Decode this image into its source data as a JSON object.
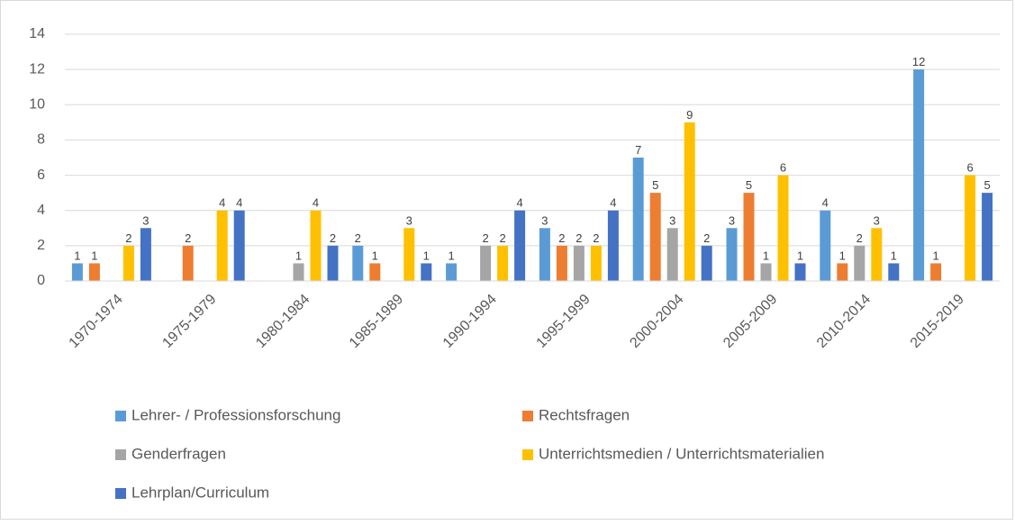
{
  "chart_data": {
    "type": "bar",
    "categories": [
      "1970-1974",
      "1975-1979",
      "1980-1984",
      "1985-1989",
      "1990-1994",
      "1995-1999",
      "2000-2004",
      "2005-2009",
      "2010-2014",
      "2015-2019"
    ],
    "series": [
      {
        "name": "Lehrer- / Professionsforschung",
        "color": "#5b9bd5",
        "values": [
          1,
          0,
          0,
          2,
          1,
          3,
          7,
          3,
          4,
          12
        ]
      },
      {
        "name": "Rechtsfragen",
        "color": "#ed7d31",
        "values": [
          1,
          2,
          0,
          1,
          0,
          2,
          5,
          5,
          1,
          1
        ]
      },
      {
        "name": "Genderfragen",
        "color": "#a5a5a5",
        "values": [
          0,
          0,
          1,
          0,
          2,
          2,
          3,
          1,
          2,
          0
        ]
      },
      {
        "name": "Unterrichtsmedien / Unterrichtsmaterialien",
        "color": "#ffc000",
        "values": [
          2,
          4,
          4,
          3,
          2,
          2,
          9,
          6,
          3,
          6
        ]
      },
      {
        "name": "Lehrplan/Curriculum",
        "color": "#4472c4",
        "values": [
          3,
          4,
          2,
          1,
          4,
          4,
          2,
          1,
          1,
          5
        ]
      }
    ],
    "ylim": [
      0,
      14
    ],
    "yticks": [
      0,
      2,
      4,
      6,
      8,
      10,
      12,
      14
    ],
    "grid": true,
    "legend": "bottom"
  }
}
